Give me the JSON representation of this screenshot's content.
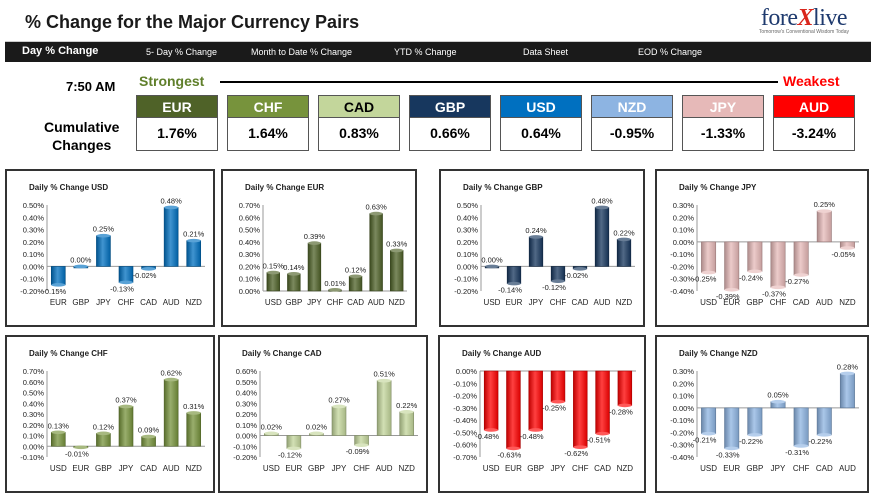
{
  "header": {
    "title": "% Change for the Major Currency Pairs",
    "logo_main_pre": "fore",
    "logo_main_x": "X",
    "logo_main_post": "live",
    "logo_sub": "Tomorrow's Conventional Wisdom Today"
  },
  "nav": [
    {
      "label": "Day % Change"
    },
    {
      "label": "5- Day % Change"
    },
    {
      "label": "Month to Date % Change"
    },
    {
      "label": "YTD % Change"
    },
    {
      "label": "Data Sheet"
    },
    {
      "label": "EOD % Change"
    }
  ],
  "summary": {
    "time": "7:50 AM",
    "strongest": "Strongest",
    "weakest": "Weakest",
    "cumulative_line1": "Cumulative",
    "cumulative_line2": "Changes",
    "currencies": [
      {
        "code": "EUR",
        "value": "1.76%",
        "color": "#4f6228"
      },
      {
        "code": "CHF",
        "value": "1.64%",
        "color": "#77933c"
      },
      {
        "code": "CAD",
        "value": "0.83%",
        "color": "#c3d69b"
      },
      {
        "code": "GBP",
        "value": "0.66%",
        "color": "#17375e"
      },
      {
        "code": "USD",
        "value": "0.64%",
        "color": "#0070c0"
      },
      {
        "code": "NZD",
        "value": "-0.95%",
        "color": "#8db4e2"
      },
      {
        "code": "JPY",
        "value": "-1.33%",
        "color": "#e6b9b8"
      },
      {
        "code": "AUD",
        "value": "-3.24%",
        "color": "#ff0000"
      }
    ]
  },
  "chart_data": [
    {
      "type": "bar",
      "title": "Daily % Change USD",
      "categories": [
        "EUR",
        "GBP",
        "JPY",
        "CHF",
        "CAD",
        "AUD",
        "NZD"
      ],
      "values": [
        -0.15,
        0.0,
        0.25,
        -0.13,
        -0.02,
        0.48,
        0.21
      ],
      "labels": [
        "-0.15%",
        "0.00%",
        "0.25%",
        "-0.13%",
        "-0.02%",
        "0.48%",
        "0.21%"
      ],
      "ylim": [
        -0.2,
        0.5
      ],
      "ticks": [
        "0.50%",
        "0.40%",
        "0.30%",
        "0.20%",
        "0.10%",
        "0.00%",
        "-0.10%",
        "-0.20%"
      ],
      "color": "#0070c0"
    },
    {
      "type": "bar",
      "title": "Daily % Change EUR",
      "categories": [
        "USD",
        "GBP",
        "JPY",
        "CHF",
        "CAD",
        "AUD",
        "NZD"
      ],
      "values": [
        0.15,
        0.14,
        0.39,
        0.01,
        0.12,
        0.63,
        0.33
      ],
      "labels": [
        "0.15%",
        "0.14%",
        "0.39%",
        "0.01%",
        "0.12%",
        "0.63%",
        "0.33%"
      ],
      "ylim": [
        0,
        0.7
      ],
      "ticks": [
        "0.70%",
        "0.60%",
        "0.50%",
        "0.40%",
        "0.30%",
        "0.20%",
        "0.10%",
        "0.00%"
      ],
      "color": "#4f6228"
    },
    {
      "type": "bar",
      "title": "Daily % Change GBP",
      "categories": [
        "USD",
        "EUR",
        "JPY",
        "CHF",
        "CAD",
        "AUD",
        "NZD"
      ],
      "values": [
        0.0,
        -0.14,
        0.24,
        -0.12,
        -0.02,
        0.48,
        0.22
      ],
      "labels": [
        "0.00%",
        "-0.14%",
        "0.24%",
        "-0.12%",
        "-0.02%",
        "0.48%",
        "0.22%"
      ],
      "ylim": [
        -0.2,
        0.5
      ],
      "ticks": [
        "0.50%",
        "0.40%",
        "0.30%",
        "0.20%",
        "0.10%",
        "0.00%",
        "-0.10%",
        "-0.20%"
      ],
      "color": "#17375e"
    },
    {
      "type": "bar",
      "title": "Daily % Change JPY",
      "categories": [
        "USD",
        "EUR",
        "GBP",
        "CHF",
        "CAD",
        "AUD",
        "NZD"
      ],
      "values": [
        -0.25,
        -0.39,
        -0.24,
        -0.37,
        -0.27,
        0.25,
        -0.05
      ],
      "labels": [
        "-0.25%",
        "-0.39%",
        "-0.24%",
        "-0.37%",
        "-0.27%",
        "0.25%",
        "-0.05%"
      ],
      "ylim": [
        -0.4,
        0.3
      ],
      "ticks": [
        "0.30%",
        "0.20%",
        "0.10%",
        "0.00%",
        "-0.10%",
        "-0.20%",
        "-0.30%",
        "-0.40%"
      ],
      "color": "#e6b9b8"
    },
    {
      "type": "bar",
      "title": "Daily % Change CHF",
      "categories": [
        "USD",
        "EUR",
        "GBP",
        "JPY",
        "CAD",
        "AUD",
        "NZD"
      ],
      "values": [
        0.13,
        -0.01,
        0.12,
        0.37,
        0.09,
        0.62,
        0.31
      ],
      "labels": [
        "0.13%",
        "-0.01%",
        "0.12%",
        "0.37%",
        "0.09%",
        "0.62%",
        "0.31%"
      ],
      "ylim": [
        -0.1,
        0.7
      ],
      "ticks": [
        "0.70%",
        "0.60%",
        "0.50%",
        "0.40%",
        "0.30%",
        "0.20%",
        "0.10%",
        "0.00%",
        "-0.10%"
      ],
      "color": "#77933c"
    },
    {
      "type": "bar",
      "title": "Daily % Change CAD",
      "categories": [
        "USD",
        "EUR",
        "GBP",
        "JPY",
        "CHF",
        "AUD",
        "NZD"
      ],
      "values": [
        0.02,
        -0.12,
        0.02,
        0.27,
        -0.09,
        0.51,
        0.22
      ],
      "labels": [
        "0.02%",
        "-0.12%",
        "0.02%",
        "0.27%",
        "-0.09%",
        "0.51%",
        "0.22%"
      ],
      "ylim": [
        -0.2,
        0.6
      ],
      "ticks": [
        "0.60%",
        "0.50%",
        "0.40%",
        "0.30%",
        "0.20%",
        "0.10%",
        "0.00%",
        "-0.10%",
        "-0.20%"
      ],
      "color": "#c3d69b"
    },
    {
      "type": "bar",
      "title": "Daily % Change AUD",
      "categories": [
        "USD",
        "EUR",
        "GBP",
        "JPY",
        "CHF",
        "CAD",
        "NZD"
      ],
      "values": [
        -0.48,
        -0.63,
        -0.48,
        -0.25,
        -0.62,
        -0.51,
        -0.28
      ],
      "labels": [
        "-0.48%",
        "-0.63%",
        "-0.48%",
        "-0.25%",
        "-0.62%",
        "-0.51%",
        "-0.28%"
      ],
      "ylim": [
        -0.7,
        0
      ],
      "ticks": [
        "0.00%",
        "-0.10%",
        "-0.20%",
        "-0.30%",
        "-0.40%",
        "-0.50%",
        "-0.60%",
        "-0.70%"
      ],
      "color": "#ff0000"
    },
    {
      "type": "bar",
      "title": "Daily % Change NZD",
      "categories": [
        "USD",
        "EUR",
        "GBP",
        "JPY",
        "CHF",
        "CAD",
        "AUD"
      ],
      "values": [
        -0.21,
        -0.33,
        -0.22,
        0.05,
        -0.31,
        -0.22,
        0.28
      ],
      "labels": [
        "-0.21%",
        "-0.33%",
        "-0.22%",
        "0.05%",
        "-0.31%",
        "-0.22%",
        "0.28%"
      ],
      "ylim": [
        -0.4,
        0.3
      ],
      "ticks": [
        "0.30%",
        "0.20%",
        "0.10%",
        "0.00%",
        "-0.10%",
        "-0.20%",
        "-0.30%",
        "-0.40%"
      ],
      "color": "#8db4e2"
    }
  ]
}
